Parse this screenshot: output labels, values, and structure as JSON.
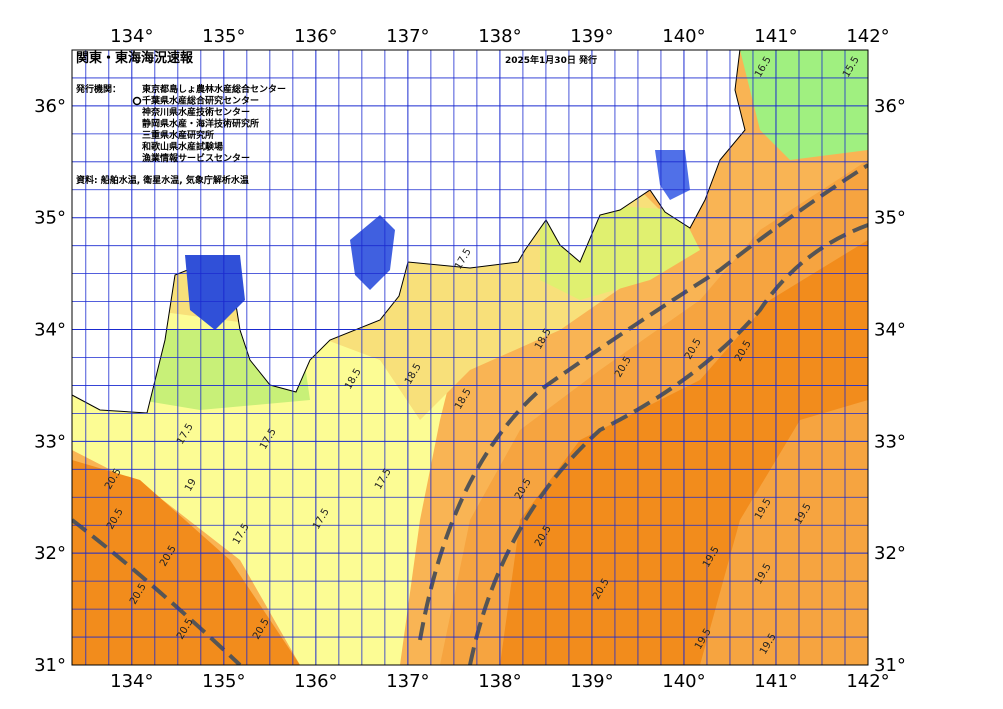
{
  "map": {
    "title": "関東・東海海況速報",
    "issue_date": "2025年1月30日 発行",
    "issuers_label": "発行機関：",
    "issuers": [
      "東京都島しょ農林水産総合センター",
      "千葉県水産総合研究センター",
      "神奈川県水産技術センター",
      "静岡県水産・海洋技術研究所",
      "三重県水産研究所",
      "和歌山県水産試験場",
      "漁業情報サービスセンター"
    ],
    "source": "資料: 船舶水温, 衛星水温, 気象庁解析水温",
    "lon_range": [
      133.35,
      142
    ],
    "lat_range": [
      31,
      36.5
    ],
    "lon_ticks": [
      {
        "value": 134,
        "label": "134°"
      },
      {
        "value": 135,
        "label": "135°"
      },
      {
        "value": 136,
        "label": "136°"
      },
      {
        "value": 137,
        "label": "137°"
      },
      {
        "value": 138,
        "label": "138°"
      },
      {
        "value": 139,
        "label": "139°"
      },
      {
        "value": 140,
        "label": "140°"
      },
      {
        "value": 141,
        "label": "141°"
      },
      {
        "value": 142,
        "label": "142°"
      }
    ],
    "lat_ticks": [
      {
        "value": 31,
        "label": "31°"
      },
      {
        "value": 32,
        "label": "32°"
      },
      {
        "value": 33,
        "label": "33°"
      },
      {
        "value": 34,
        "label": "34°"
      },
      {
        "value": 35,
        "label": "35°"
      },
      {
        "value": 36,
        "label": "36°"
      }
    ],
    "contour_labels": [
      "20.5",
      "20.5",
      "20.5",
      "20.5",
      "20.5",
      "20.5",
      "20.5",
      "20.5",
      "20.5",
      "20.5",
      "20.5",
      "20.5",
      "19.5",
      "19.5",
      "19.5",
      "19.5",
      "19.5",
      "19.5",
      "18.5",
      "18.5",
      "18.5",
      "18.5",
      "17.5",
      "17.5",
      "17.5",
      "17.5",
      "17.5",
      "16.5",
      "15.5",
      "19",
      "17.5"
    ]
  }
}
